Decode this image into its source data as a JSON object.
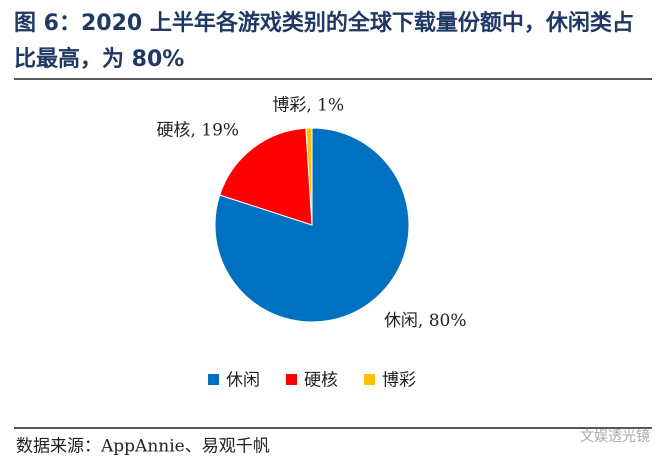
{
  "chart_data": {
    "type": "pie",
    "title": "图 6：2020 上半年各游戏类别的全球下载量份额中，休闲类占比最高，为 80%",
    "categories": [
      "休闲",
      "硬核",
      "博彩"
    ],
    "values": [
      80,
      19,
      1
    ],
    "value_labels": [
      "休闲, 80%",
      "硬核, 19%",
      "博彩, 1%"
    ],
    "colors": [
      "#0070c0",
      "#ff0000",
      "#ffc000"
    ],
    "source": "数据来源：AppAnnie、易观千帆",
    "watermark": "文娱透光镜"
  }
}
